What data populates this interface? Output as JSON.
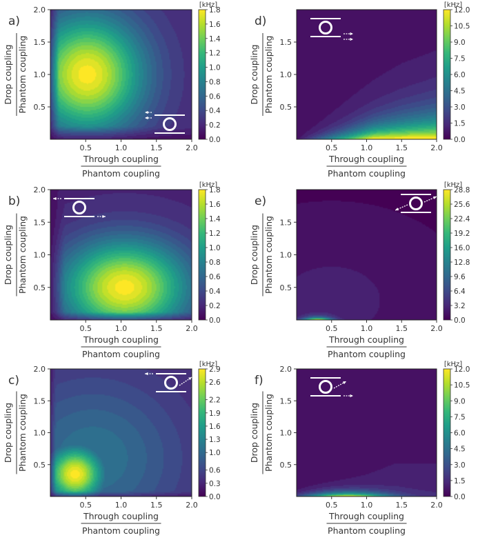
{
  "figure": {
    "colormap_stops": [
      "#440154",
      "#482878",
      "#3e4a89",
      "#31688e",
      "#26828e",
      "#1f9e89",
      "#35b779",
      "#6ece58",
      "#b5de2b",
      "#fde725"
    ]
  },
  "chart_data": [
    {
      "type": "heatmap",
      "panel": "a)",
      "xlabel_top": "Through coupling",
      "xlabel_bottom": "Phantom coupling",
      "ylabel_top": "Drop coupling",
      "ylabel_bottom": "Phantom coupling",
      "xlim": [
        0,
        2.0
      ],
      "ylim": [
        0,
        2.0
      ],
      "x_ticks": [
        "0.5",
        "1.0",
        "1.5",
        "2.0"
      ],
      "y_ticks": [
        "0.5",
        "1.0",
        "1.5",
        "2.0"
      ],
      "colorbar_unit": "[kHz]",
      "colorbar_ticks": [
        "0.0",
        "0.2",
        "0.4",
        "0.6",
        "0.8",
        "1.0",
        "1.2",
        "1.4",
        "1.6",
        "1.8"
      ],
      "colorbar_range": [
        0,
        1.8
      ],
      "peak": [
        0.5,
        1.0
      ],
      "peak_value": 1.8,
      "inset": "drop-port",
      "inset_position": "bottom-right"
    },
    {
      "type": "heatmap",
      "panel": "b)",
      "xlabel_top": "Through coupling",
      "xlabel_bottom": "Phantom coupling",
      "ylabel_top": "Drop coupling",
      "ylabel_bottom": "Phantom coupling",
      "xlim": [
        0,
        2.0
      ],
      "ylim": [
        0,
        2.0
      ],
      "x_ticks": [
        "0.5",
        "1.0",
        "1.5",
        "2.0"
      ],
      "y_ticks": [
        "0.5",
        "1.0",
        "1.5",
        "2.0"
      ],
      "colorbar_unit": "[kHz]",
      "colorbar_ticks": [
        "0.0",
        "0.2",
        "0.4",
        "0.6",
        "0.8",
        "1.0",
        "1.2",
        "1.4",
        "1.6",
        "1.8"
      ],
      "colorbar_range": [
        0,
        1.8
      ],
      "peak": [
        1.0,
        0.5
      ],
      "peak_value": 1.8,
      "inset": "through-port",
      "inset_position": "top-left"
    },
    {
      "type": "heatmap",
      "panel": "c)",
      "xlabel_top": "Through coupling",
      "xlabel_bottom": "Phantom coupling",
      "ylabel_top": "Drop coupling",
      "ylabel_bottom": "Phantom coupling",
      "xlim": [
        0,
        2.0
      ],
      "ylim": [
        0,
        2.0
      ],
      "x_ticks": [
        "0.5",
        "1.0",
        "1.5",
        "2.0"
      ],
      "y_ticks": [
        "0.5",
        "1.0",
        "1.5",
        "2.0"
      ],
      "colorbar_unit": "[kHz]",
      "colorbar_ticks": [
        "0.0",
        "0.3",
        "0.6",
        "1.0",
        "1.3",
        "1.6",
        "1.9",
        "2.2",
        "2.6",
        "2.9"
      ],
      "colorbar_range": [
        0,
        2.9
      ],
      "peak": [
        0.35,
        0.35
      ],
      "peak_value": 2.9,
      "inset": "drop-phantom",
      "inset_position": "top-right"
    },
    {
      "type": "heatmap",
      "panel": "d)",
      "xlabel_top": "Through coupling",
      "xlabel_bottom": "Phantom coupling",
      "ylabel_top": "Drop coupling",
      "ylabel_bottom": "Phantom coupling",
      "xlim": [
        0,
        2.0
      ],
      "ylim": [
        0,
        2.0
      ],
      "x_ticks": [
        "0.5",
        "1.0",
        "1.5",
        "2.0"
      ],
      "y_ticks": [
        "0.5",
        "1.0",
        "1.5"
      ],
      "colorbar_unit": "[kHz]",
      "colorbar_ticks": [
        "0.0",
        "1.5",
        "3.0",
        "4.5",
        "6.0",
        "7.5",
        "9.0",
        "10.5",
        "12.0"
      ],
      "colorbar_range": [
        0,
        12.0
      ],
      "peak": [
        1.4,
        0.0
      ],
      "peak_value": 12.0,
      "inset": "through-through",
      "inset_position": "top-left"
    },
    {
      "type": "heatmap",
      "panel": "e)",
      "xlabel_top": "Through coupling",
      "xlabel_bottom": "Phantom coupling",
      "ylabel_top": "Drop coupling",
      "ylabel_bottom": "Phantom coupling",
      "xlim": [
        0,
        2.0
      ],
      "ylim": [
        0,
        2.0
      ],
      "x_ticks": [
        "0.5",
        "1.0",
        "1.5",
        "2.0"
      ],
      "y_ticks": [
        "0.5",
        "1.0",
        "1.5"
      ],
      "colorbar_unit": "[kHz]",
      "colorbar_ticks": [
        "0.0",
        "3.2",
        "6.4",
        "9.6",
        "12.8",
        "16.0",
        "19.2",
        "22.4",
        "25.6",
        "28.8"
      ],
      "colorbar_range": [
        0,
        28.8
      ],
      "peak": [
        0.3,
        0.0
      ],
      "peak_value": 28.8,
      "inset": "phantom-phantom",
      "inset_position": "top-right"
    },
    {
      "type": "heatmap",
      "panel": "f)",
      "xlabel_top": "Through coupling",
      "xlabel_bottom": "Phantom coupling",
      "ylabel_top": "Drop coupling",
      "ylabel_bottom": "Phantom coupling",
      "xlim": [
        0,
        2.0
      ],
      "ylim": [
        0,
        2.0
      ],
      "x_ticks": [
        "0.5",
        "1.0",
        "1.5",
        "2.0"
      ],
      "y_ticks": [
        "0.5",
        "1.0",
        "1.5",
        "2.0"
      ],
      "colorbar_unit": "[kHz]",
      "colorbar_ticks": [
        "0.0",
        "1.5",
        "3.0",
        "4.5",
        "6.0",
        "7.5",
        "9.0",
        "10.5",
        "12.0"
      ],
      "colorbar_range": [
        0,
        12.0
      ],
      "peak": [
        0.7,
        0.0
      ],
      "peak_value": 12.0,
      "inset": "through-phantom",
      "inset_position": "top-left"
    }
  ]
}
